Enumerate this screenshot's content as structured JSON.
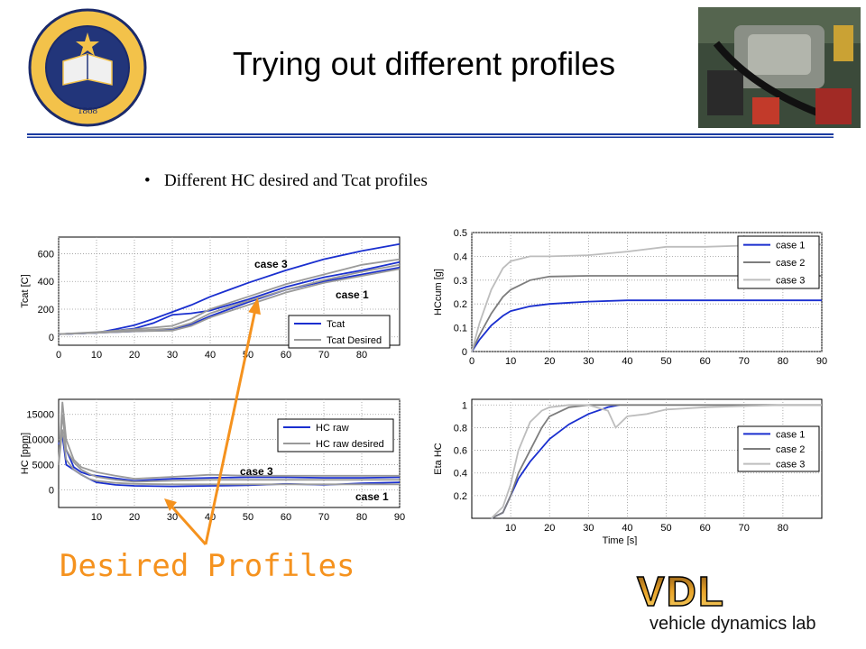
{
  "slide": {
    "title": "Trying out different profiles",
    "bullet": "Different HC desired and Tcat profiles",
    "callout": "Desired Profiles",
    "seal_text": "THE UNIVERSITY OF CALIFORNIA",
    "seal_motto": "LET THERE BE LIGHT",
    "seal_year": "1868",
    "logo": {
      "big": "VDL",
      "small": "vehicle dynamics lab"
    },
    "accent_color": "#f5921e",
    "rule_color": "#1a3aa0"
  },
  "chart_data": [
    {
      "type": "line",
      "ylabel": "Tcat [C]",
      "xlabel": "",
      "xlim": [
        0,
        90
      ],
      "ylim": [
        -60,
        720
      ],
      "xticks": [
        0,
        10,
        20,
        30,
        40,
        50,
        60,
        70,
        80
      ],
      "yticks": [
        0,
        200,
        400,
        600
      ],
      "grid": true,
      "legend": [
        "Tcat",
        "Tcat Desired"
      ],
      "legend_position": "bottom-right",
      "annotations": [
        "case 3",
        "case 1"
      ],
      "series": [
        {
          "name": "Tcat",
          "x": [
            0,
            10,
            15,
            20,
            25,
            30,
            35,
            40,
            50,
            60,
            70,
            80,
            90
          ],
          "y": [
            20,
            30,
            55,
            85,
            130,
            180,
            230,
            290,
            390,
            480,
            560,
            620,
            670
          ]
        },
        {
          "name": "Tcat",
          "x": [
            0,
            10,
            20,
            25,
            30,
            35,
            40,
            50,
            60,
            70,
            80,
            90
          ],
          "y": [
            20,
            30,
            60,
            100,
            160,
            170,
            190,
            270,
            360,
            430,
            480,
            540
          ]
        },
        {
          "name": "Tcat",
          "x": [
            0,
            10,
            20,
            30,
            35,
            40,
            50,
            60,
            70,
            80,
            90
          ],
          "y": [
            20,
            30,
            40,
            50,
            90,
            150,
            250,
            340,
            400,
            450,
            500
          ]
        },
        {
          "name": "Tcat Desired",
          "x": [
            0,
            10,
            20,
            30,
            35,
            40,
            50,
            60,
            70,
            80,
            90
          ],
          "y": [
            20,
            35,
            55,
            80,
            130,
            200,
            290,
            380,
            450,
            520,
            560
          ]
        },
        {
          "name": "Tcat Desired",
          "x": [
            0,
            10,
            20,
            30,
            35,
            40,
            50,
            60,
            70,
            80,
            90
          ],
          "y": [
            20,
            30,
            45,
            60,
            100,
            170,
            260,
            340,
            410,
            470,
            520
          ]
        },
        {
          "name": "Tcat Desired",
          "x": [
            0,
            10,
            20,
            30,
            35,
            40,
            50,
            60,
            70,
            80,
            90
          ],
          "y": [
            20,
            30,
            40,
            45,
            80,
            140,
            230,
            320,
            390,
            440,
            490
          ]
        }
      ]
    },
    {
      "type": "line",
      "ylabel": "HCcum [g]",
      "xlabel": "",
      "xlim": [
        0,
        90
      ],
      "ylim": [
        0,
        0.5
      ],
      "xticks": [
        0,
        10,
        20,
        30,
        40,
        50,
        60,
        70,
        80,
        90
      ],
      "yticks": [
        0,
        0.1,
        0.2,
        0.3,
        0.4,
        0.5
      ],
      "grid": true,
      "legend": [
        "case 1",
        "case 2",
        "case 3"
      ],
      "legend_position": "top-right",
      "series": [
        {
          "name": "case 1",
          "x": [
            0,
            2,
            5,
            8,
            10,
            15,
            20,
            30,
            40,
            50,
            60,
            70,
            80,
            90
          ],
          "y": [
            0,
            0.05,
            0.11,
            0.15,
            0.17,
            0.19,
            0.2,
            0.21,
            0.215,
            0.215,
            0.215,
            0.215,
            0.215,
            0.215
          ]
        },
        {
          "name": "case 2",
          "x": [
            0,
            2,
            5,
            8,
            10,
            15,
            20,
            30,
            40,
            50,
            60,
            70,
            80,
            90
          ],
          "y": [
            0,
            0.07,
            0.16,
            0.23,
            0.26,
            0.3,
            0.315,
            0.318,
            0.318,
            0.318,
            0.318,
            0.318,
            0.318,
            0.318
          ]
        },
        {
          "name": "case 3",
          "x": [
            0,
            2,
            5,
            8,
            10,
            15,
            20,
            30,
            40,
            50,
            60,
            70,
            80,
            90
          ],
          "y": [
            0,
            0.12,
            0.26,
            0.35,
            0.38,
            0.4,
            0.4,
            0.405,
            0.42,
            0.44,
            0.44,
            0.445,
            0.45,
            0.45
          ]
        }
      ]
    },
    {
      "type": "line",
      "ylabel": "HC [ppm]",
      "xlabel": "",
      "xlim": [
        0,
        90
      ],
      "ylim": [
        -3500,
        18000
      ],
      "xticks": [
        10,
        20,
        30,
        40,
        50,
        60,
        70,
        80,
        90
      ],
      "yticks": [
        0,
        5000,
        10000,
        15000
      ],
      "grid": true,
      "legend": [
        "HC raw",
        "HC raw desired"
      ],
      "legend_position": "top-right",
      "annotations": [
        "case 3",
        "case 1"
      ],
      "series": [
        {
          "name": "HC raw",
          "x": [
            0,
            1,
            2,
            4,
            6,
            8,
            10,
            15,
            20,
            30,
            40,
            50,
            60,
            70,
            80,
            90
          ],
          "y": [
            9000,
            10800,
            5000,
            4000,
            3000,
            2200,
            1500,
            1000,
            800,
            700,
            800,
            900,
            1200,
            1000,
            1300,
            1500
          ]
        },
        {
          "name": "HC raw",
          "x": [
            0,
            1,
            2,
            4,
            6,
            8,
            10,
            15,
            20,
            30,
            40,
            50,
            60,
            70,
            80,
            90
          ],
          "y": [
            9000,
            10500,
            8000,
            4500,
            3500,
            3000,
            2800,
            2300,
            1800,
            2200,
            2400,
            2500,
            2500,
            2400,
            2400,
            2500
          ]
        },
        {
          "name": "HC raw desired",
          "x": [
            0,
            1,
            2,
            4,
            6,
            8,
            10,
            15,
            20,
            30,
            40,
            50,
            60,
            70,
            80,
            90
          ],
          "y": [
            5000,
            17500,
            10000,
            6000,
            4500,
            4000,
            3500,
            2800,
            2200,
            2600,
            3000,
            2800,
            2800,
            2800,
            2800,
            2800
          ]
        },
        {
          "name": "HC raw desired",
          "x": [
            0,
            1,
            2,
            4,
            6,
            8,
            10,
            15,
            20,
            30,
            40,
            50,
            60,
            70,
            80,
            90
          ],
          "y": [
            5000,
            15000,
            8000,
            5500,
            4000,
            3200,
            2600,
            2000,
            1600,
            1800,
            2000,
            2000,
            2000,
            2000,
            2000,
            2000
          ]
        },
        {
          "name": "HC raw desired",
          "x": [
            0,
            1,
            2,
            4,
            6,
            8,
            10,
            15,
            20,
            30,
            40,
            50,
            60,
            70,
            80,
            90
          ],
          "y": [
            5000,
            12000,
            6000,
            4000,
            3000,
            2200,
            1800,
            1400,
            1200,
            1100,
            1100,
            1100,
            1100,
            1100,
            1100,
            1100
          ]
        }
      ]
    },
    {
      "type": "line",
      "ylabel": "Eta HC",
      "xlabel": "Time [s]",
      "xlim": [
        0,
        90
      ],
      "ylim": [
        0,
        1.05
      ],
      "xticks": [
        10,
        20,
        30,
        40,
        50,
        60,
        70,
        80
      ],
      "yticks": [
        0.2,
        0.4,
        0.6,
        0.8,
        1
      ],
      "grid": true,
      "legend": [
        "case 1",
        "case 2",
        "case 3"
      ],
      "legend_position": "center-right",
      "series": [
        {
          "name": "case 1",
          "x": [
            5,
            8,
            10,
            12,
            15,
            18,
            20,
            25,
            30,
            35,
            38
          ],
          "y": [
            0,
            0.05,
            0.2,
            0.35,
            0.5,
            0.62,
            0.7,
            0.83,
            0.92,
            0.98,
            1.0
          ]
        },
        {
          "name": "case 2",
          "x": [
            5,
            8,
            10,
            12,
            15,
            18,
            20,
            25,
            30,
            40,
            50,
            60,
            70,
            80,
            90
          ],
          "y": [
            0,
            0.05,
            0.2,
            0.4,
            0.6,
            0.8,
            0.9,
            0.98,
            1.0,
            1.0,
            1.0,
            1.0,
            1.0,
            1.0,
            1.0
          ]
        },
        {
          "name": "case 3",
          "x": [
            5,
            8,
            10,
            12,
            15,
            18,
            20,
            25,
            30,
            35,
            37,
            40,
            45,
            50,
            55,
            60,
            70,
            80,
            90
          ],
          "y": [
            0,
            0.1,
            0.3,
            0.6,
            0.85,
            0.95,
            0.98,
            1.0,
            1.0,
            0.95,
            0.8,
            0.9,
            0.92,
            0.96,
            0.97,
            0.98,
            0.99,
            1.0,
            1.0
          ]
        }
      ]
    }
  ]
}
